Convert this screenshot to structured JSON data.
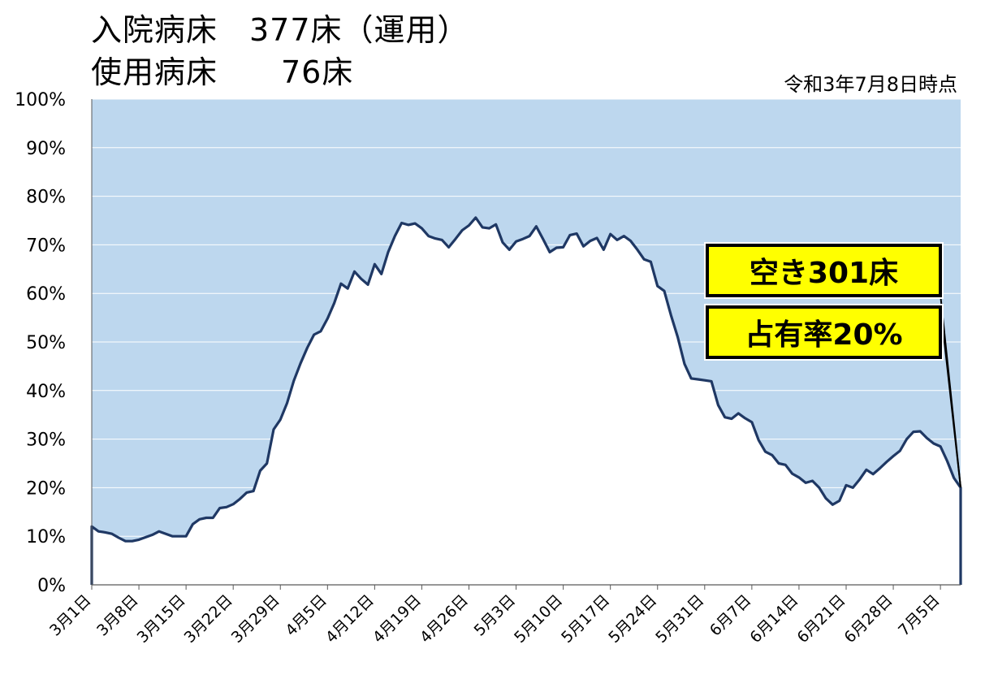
{
  "header": {
    "line1": "入院病床　377床（運用）",
    "line2": "使用病床　　76床",
    "as_of": "令和3年7月8日時点"
  },
  "callouts": {
    "vacant": "空き301床",
    "occupancy": "占有率20%"
  },
  "colors": {
    "area_fill": "#bdd7ee",
    "line": "#1f3864",
    "callout_fill": "#ffff00"
  },
  "chart_data": {
    "type": "area",
    "title": "",
    "xlabel": "",
    "ylabel": "",
    "ylim": [
      0,
      100
    ],
    "y_unit": "%",
    "y_ticks": [
      "0%",
      "10%",
      "20%",
      "30%",
      "40%",
      "50%",
      "60%",
      "70%",
      "80%",
      "90%",
      "100%"
    ],
    "x_tick_labels": [
      "3月1日",
      "3月8日",
      "3月15日",
      "3月22日",
      "3月29日",
      "4月5日",
      "4月12日",
      "4月19日",
      "4月26日",
      "5月3日",
      "5月10日",
      "5月17日",
      "5月24日",
      "5月31日",
      "6月7日",
      "6月14日",
      "6月21日",
      "6月28日",
      "7月5日"
    ],
    "x_start": "3月1日",
    "x_end": "7月8日",
    "series": [
      {
        "values": [
          12.0,
          11.0,
          10.8,
          10.5,
          9.7,
          9.0,
          9.0,
          9.3,
          9.8,
          10.3,
          11.0,
          10.5,
          10.0,
          10.0,
          10.0,
          12.5,
          13.5,
          13.8,
          13.8,
          15.8,
          16.0,
          16.6,
          17.7,
          19.0,
          19.3,
          23.5,
          25.0,
          32.0,
          34.0,
          37.4,
          42.0,
          45.6,
          48.8,
          51.5,
          52.2,
          54.8,
          58.0,
          62.0,
          61.0,
          64.5,
          63.0,
          61.8,
          66.0,
          64.0,
          68.5,
          71.8,
          74.5,
          74.1,
          74.4,
          73.4,
          71.8,
          71.3,
          71.0,
          69.5,
          71.2,
          73.0,
          74.0,
          75.6,
          73.6,
          73.4,
          74.2,
          70.5,
          69.0,
          70.7,
          71.2,
          71.8,
          73.8,
          71.2,
          68.5,
          69.4,
          69.5,
          72.0,
          72.3,
          69.7,
          70.8,
          71.4,
          69.0,
          72.2,
          71.0,
          71.8,
          70.8,
          69.0,
          67.0,
          66.5,
          61.5,
          60.5,
          55.5,
          51.0,
          45.5,
          42.5,
          42.3,
          42.1,
          41.9,
          37.0,
          34.5,
          34.2,
          35.3,
          34.3,
          33.5,
          29.8,
          27.4,
          26.7,
          25.0,
          24.7,
          22.9,
          22.1,
          21.0,
          21.4,
          20.0,
          17.8,
          16.5,
          17.3,
          20.5,
          20.0,
          21.7,
          23.7,
          22.8,
          24.0,
          25.3,
          26.5,
          27.6,
          30.0,
          31.5,
          31.6,
          30.2,
          29.1,
          28.5,
          25.5,
          22.0,
          20.0
        ]
      }
    ]
  }
}
